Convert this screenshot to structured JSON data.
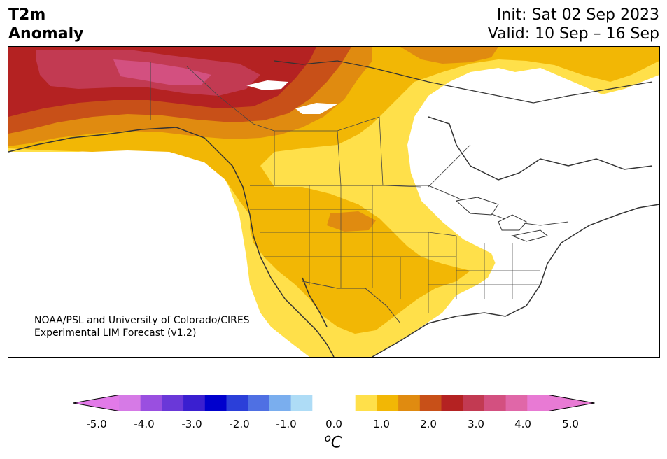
{
  "title": {
    "variable_line1": "T2m",
    "variable_line2": "Anomaly",
    "init": "Init: Sat 02 Sep 2023",
    "valid": "Valid: 10 Sep – 16 Sep"
  },
  "credit": {
    "line1": "NOAA/PSL and University of Colorado/CIRES",
    "line2": "Experimental LIM Forecast (v1.2)"
  },
  "colorbar": {
    "ticks": [
      "-5.0",
      "-4.0",
      "-3.0",
      "-2.0",
      "-1.0",
      "0.0",
      "1.0",
      "2.0",
      "3.0",
      "4.0",
      "5.0"
    ],
    "units": "C",
    "units_prefix": "o",
    "colors": [
      "#d67ae6",
      "#9a4fe0",
      "#6a38d8",
      "#3a1fd0",
      "#0000cd",
      "#2b3fd9",
      "#4f70e3",
      "#7aaeee",
      "#aedcf6",
      "#ffffff",
      "#ffffff",
      "#ffe04a",
      "#f2b705",
      "#e08b10",
      "#c85018",
      "#b42222",
      "#c23a52",
      "#d35080",
      "#e067a8",
      "#e87ad4"
    ],
    "under_color": "#e27ae8",
    "over_color": "#e87ad4"
  },
  "map": {
    "region": "North America",
    "colors": {
      "c_05_10": "#ffe04a",
      "c_10_15": "#f2b705",
      "c_15_20": "#e08b10",
      "c_20_25": "#c85018",
      "c_25_30": "#b42222",
      "c_30_35": "#c23a52",
      "c_35_40": "#d35080",
      "coast": "#333333",
      "border": "#444444"
    }
  }
}
